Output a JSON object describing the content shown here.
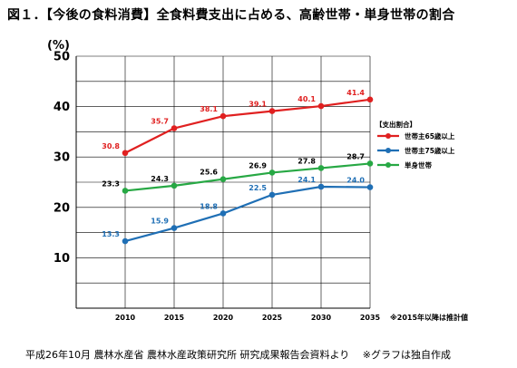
{
  "title": "図１．【今後の食料消費】全食料費支出に占める、高齢世帯・単身世帯の割合",
  "source_note": "平成26年10月 農林水産省 農林水産政策研究所 研究成果報告会資料より　 ※グラフは独自作成",
  "chart_data": {
    "type": "line",
    "ylabel": "(%)",
    "ylim": [
      0,
      50
    ],
    "yticks": [
      10,
      20,
      30,
      40,
      50
    ],
    "x": [
      2010,
      2015,
      2020,
      2025,
      2030,
      2035
    ],
    "x_note": "※2015年以降は推計値",
    "grid": true,
    "legend_title": "【支出割合】",
    "legend_position": "right",
    "series": [
      {
        "name": "世帯主65歳以上",
        "color": "#e02020",
        "values": [
          30.8,
          35.7,
          38.1,
          39.1,
          40.1,
          41.4
        ]
      },
      {
        "name": "世帯主75歳以上",
        "color": "#1f6fb5",
        "values": [
          13.3,
          15.9,
          18.8,
          22.5,
          24.1,
          24.0
        ]
      },
      {
        "name": "単身世帯",
        "color": "#27a844",
        "values": [
          23.3,
          24.3,
          25.6,
          26.9,
          27.8,
          28.7
        ]
      }
    ]
  }
}
